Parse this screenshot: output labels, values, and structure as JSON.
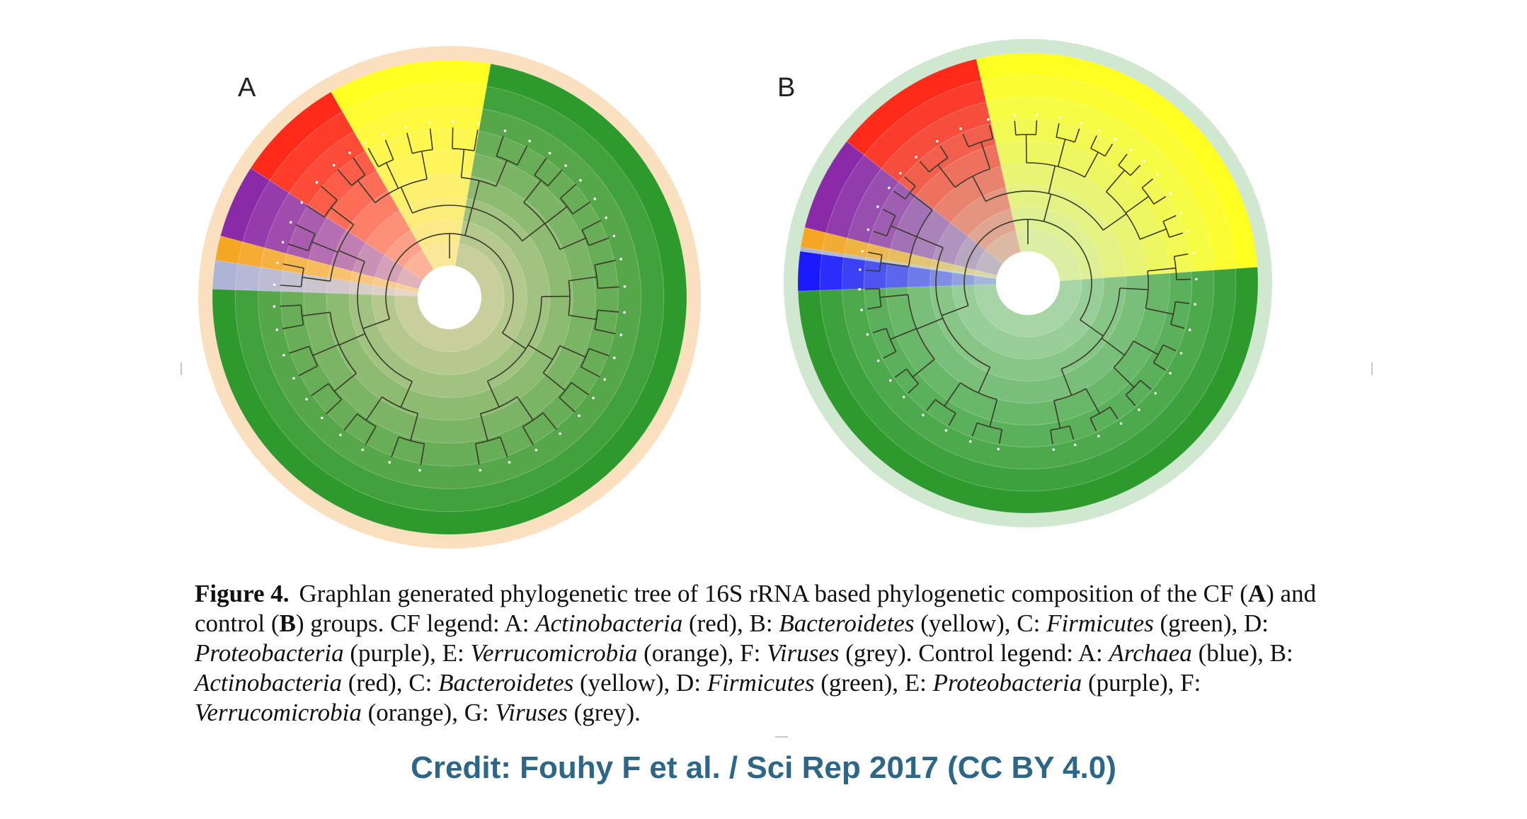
{
  "panels": [
    {
      "label": "A",
      "sectors": [
        {
          "taxon": "Actinobacteria",
          "color": "#ff2a1a",
          "start": 303,
          "end": 330
        },
        {
          "taxon": "Bacteroidetes",
          "color": "#ffff22",
          "start": 330,
          "end": 10
        },
        {
          "taxon": "Firmicutes",
          "color": "#2e9a2e",
          "start": 10,
          "end": 272
        },
        {
          "taxon": "Proteobacteria",
          "color": "#8a2aa8",
          "start": 285,
          "end": 303
        },
        {
          "taxon": "Verrucomicrobia",
          "color": "#f5a623",
          "start": 279,
          "end": 285
        },
        {
          "taxon": "Viruses",
          "color": "#aeb4d6",
          "start": 272,
          "end": 279
        }
      ],
      "outer_ring_color": "#fbe0c0"
    },
    {
      "label": "B",
      "sectors": [
        {
          "taxon": "Archaea",
          "color": "#1a1aff",
          "start": 268,
          "end": 278
        },
        {
          "taxon": "Actinobacteria",
          "color": "#ff2a1a",
          "start": 308,
          "end": 347
        },
        {
          "taxon": "Bacteroidetes",
          "color": "#ffff22",
          "start": 347,
          "end": 86
        },
        {
          "taxon": "Firmicutes",
          "color": "#2e9a2e",
          "start": 86,
          "end": 268
        },
        {
          "taxon": "Proteobacteria",
          "color": "#8a2aa8",
          "start": 284,
          "end": 308
        },
        {
          "taxon": "Verrucomicrobia",
          "color": "#f5a623",
          "start": 279,
          "end": 284
        },
        {
          "taxon": "Viruses",
          "color": "#aeb4d6",
          "start": 278,
          "end": 279
        }
      ],
      "outer_ring_color": "#cfe8cf"
    }
  ],
  "caption": {
    "figure_number": "Figure 4.",
    "parts": [
      {
        "text": "Graphlan generated phylogenetic tree of 16S rRNA based phylogenetic composition of the CF (",
        "style": "normal"
      },
      {
        "text": "A",
        "style": "bold"
      },
      {
        "text": ") and control (",
        "style": "normal"
      },
      {
        "text": "B",
        "style": "bold"
      },
      {
        "text": ") groups. CF legend: A: ",
        "style": "normal"
      },
      {
        "text": "Actinobacteria",
        "style": "italic"
      },
      {
        "text": " (red), B: ",
        "style": "normal"
      },
      {
        "text": "Bacteroidetes",
        "style": "italic"
      },
      {
        "text": " (yellow), C: ",
        "style": "normal"
      },
      {
        "text": "Firmicutes",
        "style": "italic"
      },
      {
        "text": " (green), D: ",
        "style": "normal"
      },
      {
        "text": "Proteobacteria",
        "style": "italic"
      },
      {
        "text": " (purple), E: ",
        "style": "normal"
      },
      {
        "text": "Verrucomicrobia",
        "style": "italic"
      },
      {
        "text": " (orange), F: ",
        "style": "normal"
      },
      {
        "text": "Viruses",
        "style": "italic"
      },
      {
        "text": " (grey). Control legend: A: ",
        "style": "normal"
      },
      {
        "text": "Archaea",
        "style": "italic"
      },
      {
        "text": " (blue), B: ",
        "style": "normal"
      },
      {
        "text": "Actinobacteria",
        "style": "italic"
      },
      {
        "text": " (red), C: ",
        "style": "normal"
      },
      {
        "text": "Bacteroidetes",
        "style": "italic"
      },
      {
        "text": " (yellow), D: ",
        "style": "normal"
      },
      {
        "text": "Firmicutes",
        "style": "italic"
      },
      {
        "text": " (green), E: ",
        "style": "normal"
      },
      {
        "text": "Proteobacteria",
        "style": "italic"
      },
      {
        "text": " (purple), F: ",
        "style": "normal"
      },
      {
        "text": "Verrucomicrobia",
        "style": "italic"
      },
      {
        "text": " (orange), G: ",
        "style": "normal"
      },
      {
        "text": "Viruses",
        "style": "italic"
      },
      {
        "text": " (grey).",
        "style": "normal"
      }
    ]
  },
  "credit": "Credit: Fouhy F et al. / Sci Rep 2017 (CC BY 4.0)"
}
